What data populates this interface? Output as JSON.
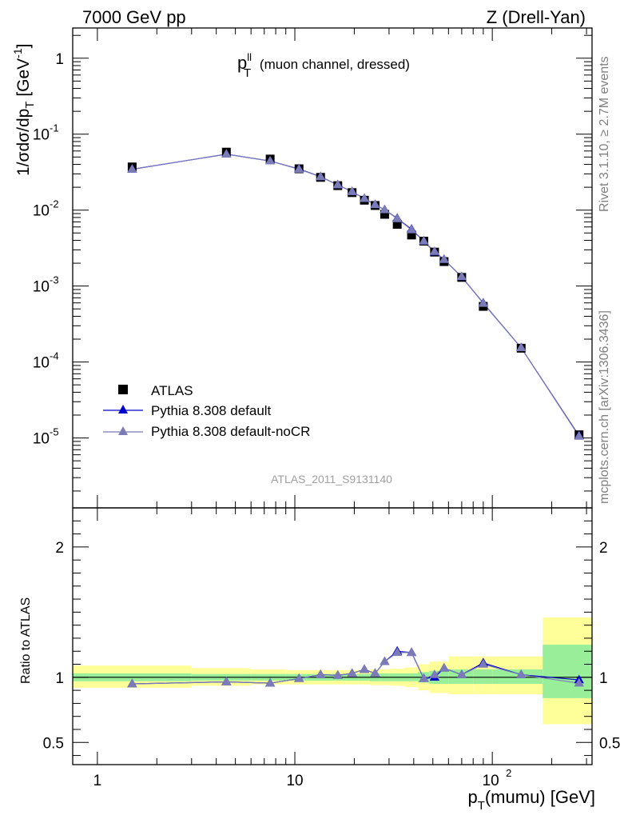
{
  "header": {
    "left": "7000 GeV pp",
    "right": "Z (Drell-Yan)"
  },
  "side_labels": {
    "rivet": "Rivet 3.1.10, ≥ 2.7M events",
    "mcplots": "mcplots.cern.ch [arXiv:1306.3436]"
  },
  "analysis_id": "ATLAS_2011_S9131140",
  "colors": {
    "data": "#000000",
    "pythia_default": "#0000cc",
    "pythia_nocr": "#7b7bb8",
    "band_inner": "#99ee99",
    "band_outer": "#ffff99"
  },
  "chart_data": [
    {
      "type": "scatter",
      "title": "p_T^ll (muon channel, dressed)",
      "ylabel": "1/σdσ/dp_T [GeV^-1]",
      "xscale": "log",
      "yscale": "log",
      "xlim": [
        0.75,
        320
      ],
      "ylim": [
        1.2e-06,
        2.5
      ],
      "x_tick_labels": [
        "1",
        "10",
        "10^2"
      ],
      "y_tick_labels": [
        "10^-5",
        "10^-4",
        "10^-3",
        "10^-2",
        "10^-1",
        "1"
      ],
      "legend_position": "lower-left",
      "x": [
        1.5,
        4.5,
        7.5,
        10.5,
        13.5,
        16.5,
        19.5,
        22.5,
        25.5,
        28.5,
        33.0,
        39.0,
        45.0,
        51.0,
        57.0,
        70.0,
        90.0,
        140.0,
        275.0
      ],
      "series": [
        {
          "name": "ATLAS",
          "marker": "square",
          "values": [
            0.037,
            0.058,
            0.047,
            0.035,
            0.027,
            0.021,
            0.017,
            0.0135,
            0.0115,
            0.0088,
            0.0065,
            0.0047,
            0.0039,
            0.0028,
            0.0021,
            0.0013,
            0.00054,
            0.000152,
            1.1e-05
          ]
        },
        {
          "name": "Pythia 8.308 default",
          "marker": "triangle",
          "values": [
            0.0345,
            0.0545,
            0.0443,
            0.0348,
            0.0275,
            0.0215,
            0.0175,
            0.0142,
            0.0118,
            0.0101,
            0.0078,
            0.0056,
            0.0039,
            0.00281,
            0.00224,
            0.00132,
            0.000597,
            0.000154,
            1.07e-05
          ]
        },
        {
          "name": "Pythia 8.308 default-noCR",
          "marker": "triangle",
          "values": [
            0.0345,
            0.0545,
            0.0443,
            0.0345,
            0.0275,
            0.0215,
            0.0175,
            0.0142,
            0.0118,
            0.0101,
            0.0077,
            0.0055,
            0.0039,
            0.00285,
            0.00223,
            0.00133,
            0.000591,
            0.000154,
            1.05e-05
          ]
        }
      ]
    },
    {
      "type": "line",
      "xlabel": "p_T(mumu) [GeV]",
      "ylabel": "Ratio to ATLAS",
      "xscale": "log",
      "xlim": [
        0.75,
        320
      ],
      "ylim": [
        0.33,
        2.3
      ],
      "y_tick_labels": [
        "0.5",
        "1",
        "2"
      ],
      "x": [
        1.5,
        4.5,
        7.5,
        10.5,
        13.5,
        16.5,
        19.5,
        22.5,
        25.5,
        28.5,
        33.0,
        39.0,
        45.0,
        51.0,
        57.0,
        70.0,
        90.0,
        140.0,
        275.0
      ],
      "bands": {
        "edges": [
          0.75,
          3,
          6,
          9,
          12,
          15,
          18,
          21,
          24,
          27,
          30,
          36,
          42,
          48,
          54,
          60,
          80,
          100,
          180,
          320
        ],
        "inner": [
          [
            0.97,
            1.03
          ],
          [
            0.975,
            1.025
          ],
          [
            0.975,
            1.025
          ],
          [
            0.975,
            1.025
          ],
          [
            0.975,
            1.025
          ],
          [
            0.975,
            1.025
          ],
          [
            0.975,
            1.025
          ],
          [
            0.975,
            1.025
          ],
          [
            0.97,
            1.03
          ],
          [
            0.97,
            1.03
          ],
          [
            0.97,
            1.03
          ],
          [
            0.97,
            1.03
          ],
          [
            0.96,
            1.04
          ],
          [
            0.95,
            1.05
          ],
          [
            0.95,
            1.05
          ],
          [
            0.95,
            1.06
          ],
          [
            0.95,
            1.06
          ],
          [
            0.95,
            1.06
          ],
          [
            0.84,
            1.25
          ]
        ],
        "outer": [
          [
            0.92,
            1.09
          ],
          [
            0.935,
            1.07
          ],
          [
            0.945,
            1.06
          ],
          [
            0.945,
            1.055
          ],
          [
            0.945,
            1.055
          ],
          [
            0.945,
            1.055
          ],
          [
            0.945,
            1.055
          ],
          [
            0.945,
            1.055
          ],
          [
            0.94,
            1.06
          ],
          [
            0.94,
            1.06
          ],
          [
            0.935,
            1.065
          ],
          [
            0.925,
            1.075
          ],
          [
            0.9,
            1.1
          ],
          [
            0.88,
            1.12
          ],
          [
            0.88,
            1.12
          ],
          [
            0.87,
            1.16
          ],
          [
            0.87,
            1.16
          ],
          [
            0.87,
            1.16
          ],
          [
            0.64,
            1.46
          ]
        ]
      },
      "series": [
        {
          "name": "Pythia 8.308 default",
          "values": [
            0.95,
            0.965,
            0.955,
            0.99,
            1.02,
            1.015,
            1.03,
            1.06,
            1.03,
            1.12,
            1.2,
            1.19,
            0.99,
            1.0,
            1.07,
            1.02,
            1.11,
            1.02,
            0.98
          ]
        },
        {
          "name": "Pythia 8.308 default-noCR",
          "values": [
            0.95,
            0.965,
            0.955,
            0.99,
            1.02,
            1.015,
            1.03,
            1.06,
            1.03,
            1.12,
            1.19,
            1.19,
            0.99,
            1.02,
            1.07,
            1.02,
            1.1,
            1.02,
            0.955
          ]
        }
      ]
    }
  ]
}
